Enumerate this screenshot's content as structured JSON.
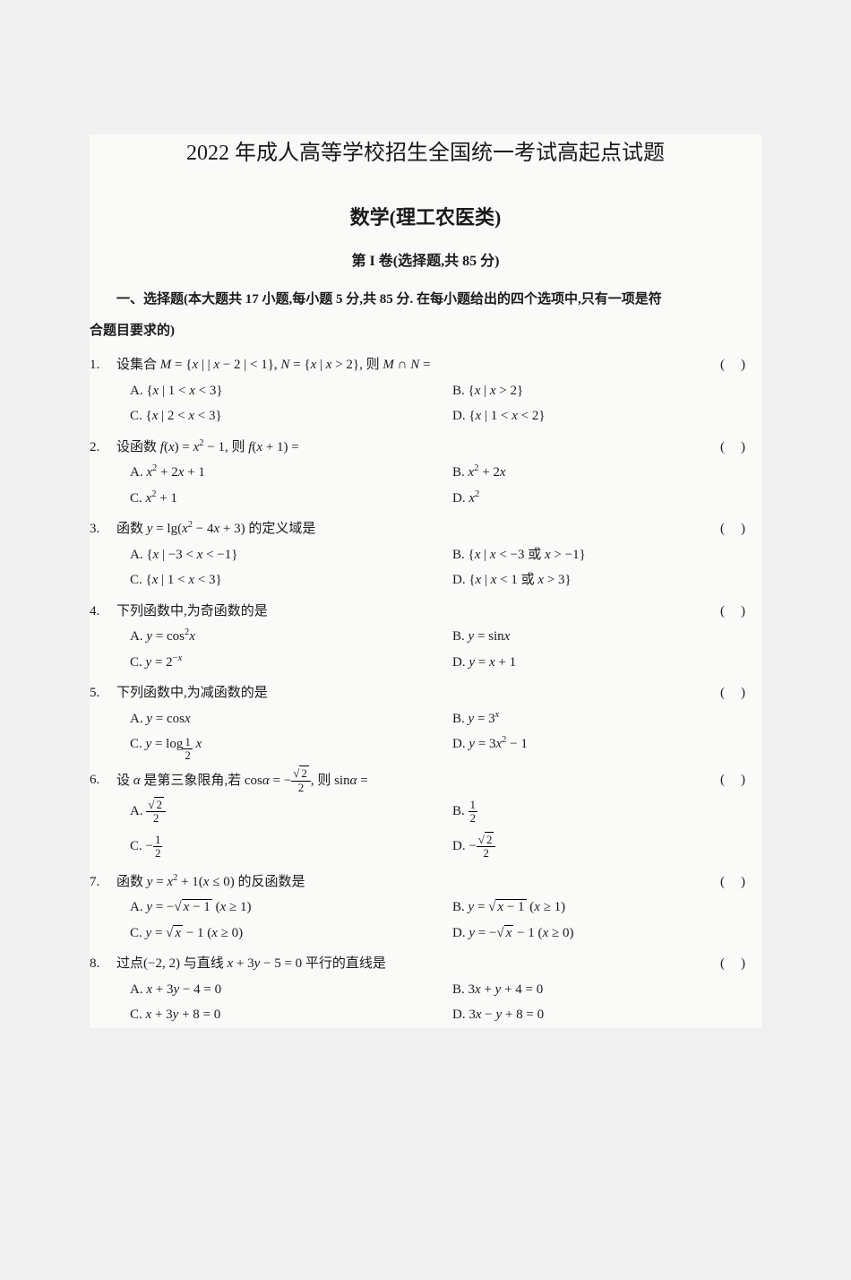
{
  "title": "2022 年成人高等学校招生全国统一考试高起点试题",
  "subtitle": "数学(理工农医类)",
  "section_header": "第 I 卷(选择题,共 85 分)",
  "instructions_line1": "一、选择题(本大题共 17 小题,每小题 5 分,共 85 分. 在每小题给出的四个选项中,只有一项是符",
  "instructions_line2": "合题目要求的)",
  "questions": [
    {
      "num": "1.",
      "stem": "设集合 M = {x | | x − 2 | < 1}, N = {x | x > 2}, 则 M ∩ N =",
      "options": [
        "A. {x | 1 < x < 3}",
        "B. {x | x > 2}",
        "C. {x | 2 < x < 3}",
        "D. {x | 1 < x < 2}"
      ]
    },
    {
      "num": "2.",
      "stem": "设函数 f(x) = x² − 1, 则 f(x + 1) =",
      "options": [
        "A. x² + 2x + 1",
        "B. x² + 2x",
        "C. x² + 1",
        "D. x²"
      ]
    },
    {
      "num": "3.",
      "stem": "函数 y = lg(x² − 4x + 3) 的定义域是",
      "options": [
        "A. {x | −3 < x < −1}",
        "B. {x | x < −3 或 x > −1}",
        "C. {x | 1 < x < 3}",
        "D. {x | x < 1 或 x > 3}"
      ]
    },
    {
      "num": "4.",
      "stem": "下列函数中,为奇函数的是",
      "options": [
        "A. y = cos²x",
        "B. y = sinx",
        "C. y = 2⁻ˣ",
        "D. y = x + 1"
      ]
    },
    {
      "num": "5.",
      "stem": "下列函数中,为减函数的是",
      "options": [
        "A. y = cosx",
        "B. y = 3ˣ",
        "C. y = log_{1/2} x",
        "D. y = 3x² − 1"
      ]
    },
    {
      "num": "6.",
      "stem": "设 α 是第三象限角,若 cosα = −√2/2, 则 sinα =",
      "options": [
        "A. √2/2",
        "B. 1/2",
        "C. −1/2",
        "D. −√2/2"
      ]
    },
    {
      "num": "7.",
      "stem": "函数 y = x² + 1(x ≤ 0) 的反函数是",
      "options": [
        "A. y = −√(x−1) (x ≥ 1)",
        "B. y = √(x−1) (x ≥ 1)",
        "C. y = √x − 1 (x ≥ 0)",
        "D. y = −√x − 1 (x ≥ 0)"
      ]
    },
    {
      "num": "8.",
      "stem": "过点(−2, 2) 与直线 x + 3y − 5 = 0 平行的直线是",
      "options": [
        "A. x + 3y − 4 = 0",
        "B. 3x + y + 4 = 0",
        "C. x + 3y + 8 = 0",
        "D. 3x − y + 8 = 0"
      ]
    }
  ],
  "paren_marker": "()",
  "colors": {
    "background": "#f0f0f0",
    "page": "#fafaf8",
    "text": "#1a1a1a"
  },
  "typography": {
    "title_fontsize": 24,
    "subtitle_fontsize": 22,
    "body_fontsize": 15
  }
}
